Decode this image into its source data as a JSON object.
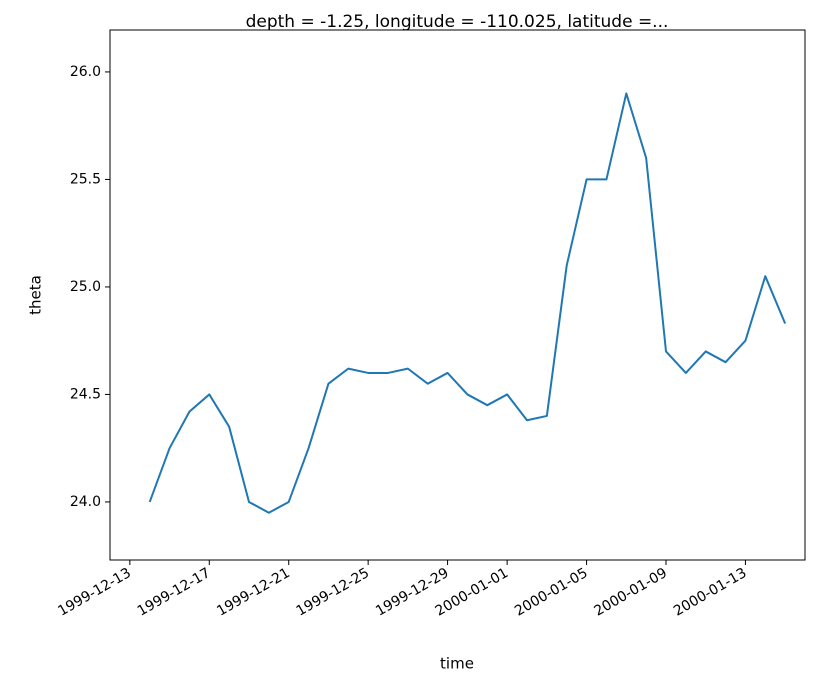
{
  "chart_data": {
    "type": "line",
    "title": "depth = -1.25, longitude = -110.025, latitude =...",
    "x_label": "time",
    "y_label": "theta",
    "x": [
      "1999-12-14",
      "1999-12-15",
      "1999-12-16",
      "1999-12-17",
      "1999-12-18",
      "1999-12-19",
      "1999-12-20",
      "1999-12-21",
      "1999-12-22",
      "1999-12-23",
      "1999-12-24",
      "1999-12-25",
      "1999-12-26",
      "1999-12-27",
      "1999-12-28",
      "1999-12-29",
      "1999-12-30",
      "1999-12-31",
      "2000-01-01",
      "2000-01-02",
      "2000-01-03",
      "2000-01-04",
      "2000-01-05",
      "2000-01-06",
      "2000-01-07",
      "2000-01-08",
      "2000-01-09",
      "2000-01-10",
      "2000-01-11",
      "2000-01-12",
      "2000-01-13",
      "2000-01-14",
      "2000-01-15"
    ],
    "series": [
      {
        "name": "theta",
        "color": "#1f77b4",
        "values": [
          24.0,
          24.25,
          24.42,
          24.5,
          24.35,
          24.0,
          23.95,
          24.0,
          24.25,
          24.55,
          24.62,
          24.6,
          24.6,
          24.62,
          24.55,
          24.6,
          24.5,
          24.45,
          24.5,
          24.38,
          24.4,
          25.1,
          25.5,
          25.5,
          25.9,
          25.6,
          24.7,
          24.6,
          24.7,
          24.65,
          24.75,
          25.05,
          24.83
        ]
      }
    ],
    "xlim": [
      "1999-12-12",
      "2000-01-16"
    ],
    "xticks": [
      "1999-12-13",
      "1999-12-17",
      "1999-12-21",
      "1999-12-25",
      "1999-12-29",
      "2000-01-01",
      "2000-01-05",
      "2000-01-09",
      "2000-01-13"
    ],
    "ylim": [
      23.73,
      26.195
    ],
    "yticks": [
      {
        "value": 24,
        "label": "24.0"
      },
      24.5,
      {
        "value": 25,
        "label": "25.0"
      },
      25.5,
      {
        "value": 26,
        "label": "26.0"
      }
    ],
    "grid": false
  }
}
